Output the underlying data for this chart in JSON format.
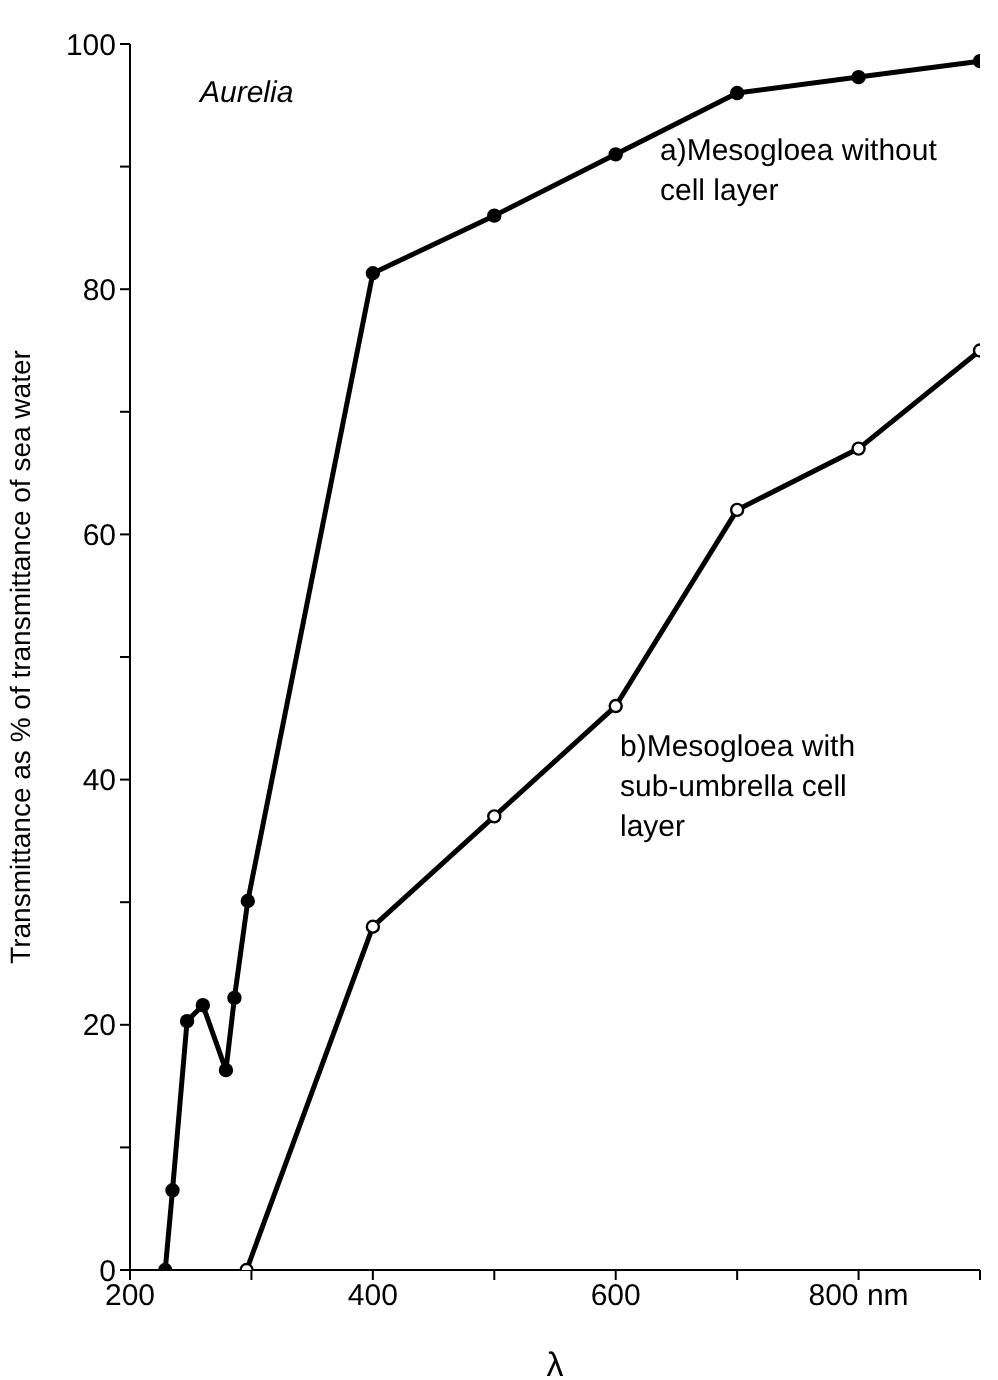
{
  "chart_data": {
    "type": "line",
    "xlabel": "λ",
    "ylabel": "Transmittance as % of transmittance of sea water",
    "annotations": [
      "Aurelia"
    ],
    "series": [
      {
        "name": "a)Mesogloea without cell layer",
        "color": "#000000",
        "x": [
          229,
          235,
          247,
          260,
          279,
          286,
          297,
          400,
          500,
          600,
          700,
          800,
          900
        ],
        "values": [
          0,
          6.5,
          20.3,
          21.6,
          16.3,
          22.2,
          30.1,
          81.3,
          86,
          91,
          96,
          97.3,
          98.6
        ]
      },
      {
        "name": "b)Mesogloea with sub-umbrella cell layer",
        "color": "#000000",
        "x": [
          296,
          400,
          500,
          600,
          700,
          800,
          900
        ],
        "values": [
          0,
          28,
          37,
          46,
          62,
          67,
          75
        ]
      }
    ],
    "xlim": [
      200,
      900
    ],
    "xticks": [
      200,
      {
        "value": 300,
        "label": null
      },
      400,
      {
        "value": 500,
        "label": null
      },
      600,
      {
        "value": 700,
        "label": null
      },
      {
        "value": 800,
        "label": "800 nm"
      },
      {
        "value": 900,
        "label": null
      }
    ],
    "ylim": [
      0,
      100
    ],
    "yticks": [
      0,
      {
        "value": 10,
        "label": null
      },
      20,
      {
        "value": 30,
        "label": null
      },
      40,
      {
        "value": 50,
        "label": null
      },
      60,
      {
        "value": 70,
        "label": null
      },
      80,
      {
        "value": 90,
        "label": null
      },
      100
    ],
    "grid": false,
    "legend": false,
    "marker": "circle",
    "line_style": "solid"
  }
}
